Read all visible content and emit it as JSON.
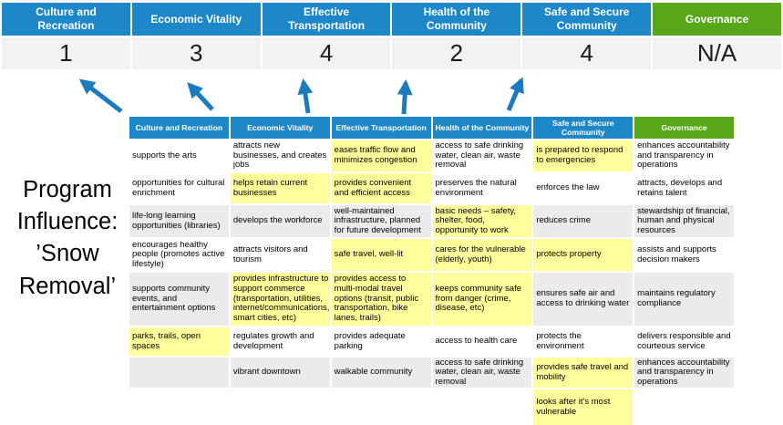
{
  "title": "Program\nInfluence:\n’Snow\nRemoval’",
  "banner": {
    "columns": [
      {
        "label": "Culture and Recreation",
        "score": "1",
        "color": "blue"
      },
      {
        "label": "Economic Vitality",
        "score": "3",
        "color": "blue"
      },
      {
        "label": "Effective Transportation",
        "score": "4",
        "color": "blue"
      },
      {
        "label": "Health of the Community",
        "score": "2",
        "color": "blue"
      },
      {
        "label": "Safe and Secure Community",
        "score": "4",
        "color": "blue"
      },
      {
        "label": "Governance",
        "score": "N/A",
        "color": "green"
      }
    ]
  },
  "matrix": {
    "headers": [
      {
        "label": "Culture and Recreation",
        "color": "blue"
      },
      {
        "label": "Economic Vitality",
        "color": "blue"
      },
      {
        "label": "Effective Transportation",
        "color": "blue"
      },
      {
        "label": "Health of the Community",
        "color": "blue"
      },
      {
        "label": "Safe and Secure Community",
        "color": "blue"
      },
      {
        "label": "Governance",
        "color": "green"
      }
    ],
    "rows": [
      [
        {
          "text": "supports the arts",
          "highlight": false
        },
        {
          "text": "attracts new businesses, and creates jobs",
          "highlight": false
        },
        {
          "text": "eases traffic flow and minimizes congestion",
          "highlight": true
        },
        {
          "text": "access to safe drinking water, clean air, waste removal",
          "highlight": false
        },
        {
          "text": "is prepared to respond to emergencies",
          "highlight": true
        },
        {
          "text": "enhances accountability and transparency in operations",
          "highlight": false
        }
      ],
      [
        {
          "text": "opportunities for cultural enrichment",
          "highlight": false
        },
        {
          "text": "helps retain current businesses",
          "highlight": true
        },
        {
          "text": "provides convenient and efficient access",
          "highlight": true
        },
        {
          "text": "preserves the natural environment",
          "highlight": false
        },
        {
          "text": "enforces the law",
          "highlight": false
        },
        {
          "text": "attracts, develops and retains talent",
          "highlight": false
        }
      ],
      [
        {
          "text": "life-long learning opportunities (libraries)",
          "highlight": false
        },
        {
          "text": "develops the workforce",
          "highlight": false
        },
        {
          "text": "well-maintained infrastructure, planned for future development",
          "highlight": false
        },
        {
          "text": "basic needs – safety, shelter, food, opportunity to work",
          "highlight": true
        },
        {
          "text": "reduces crime",
          "highlight": false
        },
        {
          "text": "stewardship of financial, human and physical resources",
          "highlight": false
        }
      ],
      [
        {
          "text": "encourages healthy people (promotes active lifestyle)",
          "highlight": false
        },
        {
          "text": "attracts visitors and tourism",
          "highlight": false
        },
        {
          "text": "safe travel, well-lit",
          "highlight": true
        },
        {
          "text": "cares for the vulnerable (elderly, youth)",
          "highlight": true
        },
        {
          "text": "protects property",
          "highlight": true
        },
        {
          "text": "assists and supports decision makers",
          "highlight": false
        }
      ],
      [
        {
          "text": "supports community events, and entertainment options",
          "highlight": false
        },
        {
          "text": "provides infrastructure to support commerce (transportation, utilities, internet/communications, smart cities, etc)",
          "highlight": true
        },
        {
          "text": "provides access to multi-modal travel options (transit, public transportation, bike lanes, trails)",
          "highlight": true
        },
        {
          "text": "keeps community safe from danger (crime, disease, etc)",
          "highlight": true
        },
        {
          "text": "ensures safe air and access to drinking water",
          "highlight": false
        },
        {
          "text": "maintains regulatory compliance",
          "highlight": false
        }
      ],
      [
        {
          "text": "parks, trails, open spaces",
          "highlight": true
        },
        {
          "text": "regulates growth and development",
          "highlight": false
        },
        {
          "text": "provides adequate parking",
          "highlight": false
        },
        {
          "text": "access to health care",
          "highlight": false
        },
        {
          "text": "protects the environment",
          "highlight": false
        },
        {
          "text": "delivers responsible and courteous service",
          "highlight": false
        }
      ],
      [
        {
          "text": "",
          "highlight": false
        },
        {
          "text": "vibrant downtown",
          "highlight": false
        },
        {
          "text": "walkable community",
          "highlight": false
        },
        {
          "text": "access to safe drinking water, clean air, waste removal",
          "highlight": false
        },
        {
          "text": "provides safe travel and mobility",
          "highlight": true
        },
        {
          "text": "enhances accountability and transparency in operations",
          "highlight": false
        }
      ],
      [
        {
          "text": "",
          "highlight": false
        },
        {
          "text": "",
          "highlight": false
        },
        {
          "text": "",
          "highlight": false
        },
        {
          "text": "",
          "highlight": false
        },
        {
          "text": "looks after it's most vulnerable",
          "highlight": true
        },
        {
          "text": "",
          "highlight": false
        }
      ]
    ]
  },
  "colors": {
    "c-blue": "#1e87c8",
    "c-green": "#58a718",
    "c-yellow": "#ffff9b",
    "c-scorebg": "#f2f2f2",
    "c-shade": "#ebebeb",
    "c-arrow": "#1c7bbe"
  }
}
